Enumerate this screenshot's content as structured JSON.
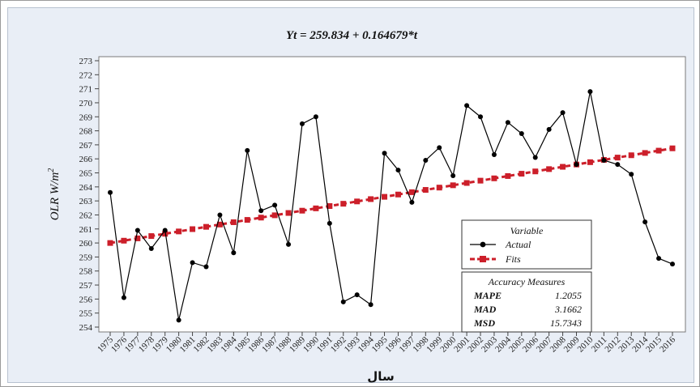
{
  "chart_data": {
    "type": "line",
    "title": "Yt = 259.834 + 0.164679*t",
    "ylabel": "OLR W/m",
    "ylabel_sup": "2",
    "xlabel": "سال",
    "ylim": [
      254,
      273
    ],
    "yticks": [
      254,
      255,
      256,
      257,
      258,
      259,
      260,
      261,
      262,
      263,
      264,
      265,
      266,
      267,
      268,
      269,
      270,
      271,
      272,
      273
    ],
    "categories": [
      "1975",
      "1976",
      "1977",
      "1978",
      "1979",
      "1980",
      "1981",
      "1982",
      "1983",
      "1984",
      "1985",
      "1986",
      "1987",
      "1988",
      "1989",
      "1990",
      "1991",
      "1992",
      "1993",
      "1994",
      "1995",
      "1996",
      "1997",
      "1998",
      "1999",
      "2000",
      "2001",
      "2002",
      "2003",
      "2004",
      "2005",
      "2006",
      "2007",
      "2008",
      "2009",
      "2010",
      "2011",
      "2012",
      "2013",
      "2014",
      "2015",
      "2016"
    ],
    "series": [
      {
        "name": "Actual",
        "color": "#000000",
        "marker": "circle",
        "values": [
          263.6,
          256.1,
          260.9,
          259.6,
          260.9,
          254.5,
          258.6,
          258.3,
          262.0,
          259.3,
          266.6,
          262.3,
          262.7,
          259.9,
          268.5,
          269.0,
          261.4,
          255.8,
          256.3,
          255.6,
          266.4,
          265.2,
          262.9,
          265.9,
          266.8,
          264.8,
          269.8,
          269.0,
          266.3,
          268.6,
          267.8,
          266.1,
          268.1,
          269.3,
          265.6,
          270.8,
          265.9,
          265.6,
          264.9,
          261.5,
          258.9,
          258.5
        ]
      },
      {
        "name": "Fits",
        "color": "#cc1f2a",
        "marker": "square",
        "values": [
          259.999,
          260.163,
          260.328,
          260.493,
          260.657,
          260.822,
          260.987,
          261.151,
          261.316,
          261.481,
          261.646,
          261.81,
          261.975,
          262.14,
          262.304,
          262.469,
          262.634,
          262.798,
          262.963,
          263.128,
          263.292,
          263.457,
          263.622,
          263.786,
          263.951,
          264.116,
          264.28,
          264.445,
          264.61,
          264.775,
          264.939,
          265.104,
          265.269,
          265.433,
          265.598,
          265.763,
          265.927,
          266.092,
          266.257,
          266.421,
          266.586,
          266.751
        ]
      }
    ],
    "legend": {
      "title": "Variable",
      "position": "lower-right"
    },
    "accuracy": {
      "title": "Accuracy Measures",
      "rows": [
        {
          "label": "MAPE",
          "value": "1.2055"
        },
        {
          "label": "MAD",
          "value": "3.1662"
        },
        {
          "label": "MSD",
          "value": "15.7343"
        }
      ]
    }
  }
}
